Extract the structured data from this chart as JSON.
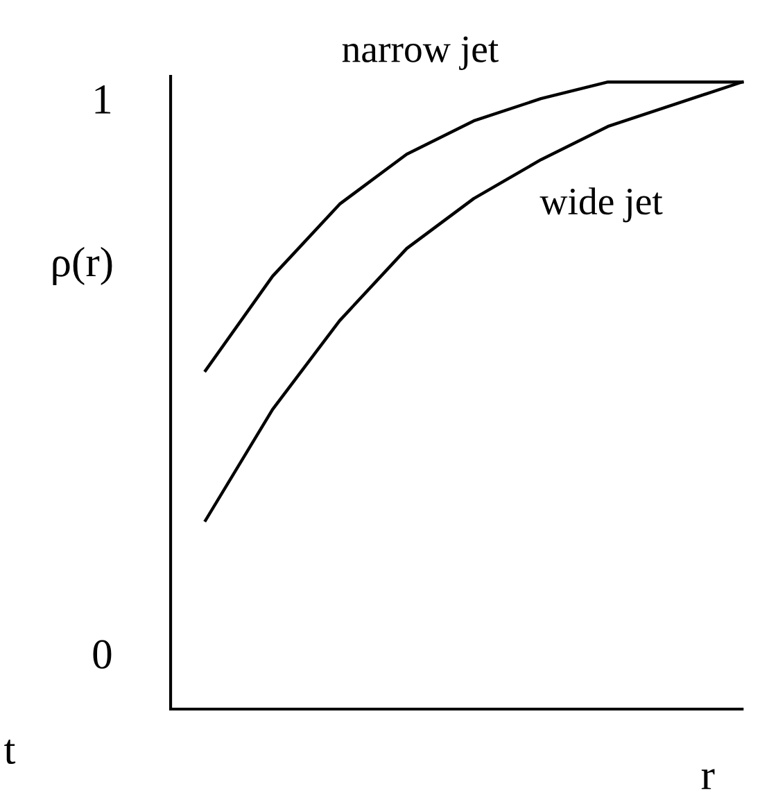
{
  "chart_data": {
    "type": "line",
    "xlabel": "r",
    "ylabel": "ρ(r)",
    "categories": [
      null,
      null,
      null,
      null,
      null,
      null,
      null,
      null,
      null
    ],
    "series": [
      {
        "name": "narrow jet",
        "color": "#000000",
        "values": [
          0.51,
          0.68,
          0.81,
          0.9,
          0.96,
          1.0,
          1.03,
          1.03,
          1.03
        ]
      },
      {
        "name": "wide jet",
        "color": "#000000",
        "values": [
          0.24,
          0.44,
          0.6,
          0.73,
          0.82,
          0.89,
          0.95,
          0.99,
          1.03
        ]
      }
    ],
    "ylim": [
      -0.1,
      1.04
    ],
    "yticks": [
      0,
      1
    ],
    "tick_labels": "y",
    "grid": false,
    "legend": false,
    "marker": "none",
    "line_style": "solid",
    "annotations": [
      "t"
    ]
  }
}
